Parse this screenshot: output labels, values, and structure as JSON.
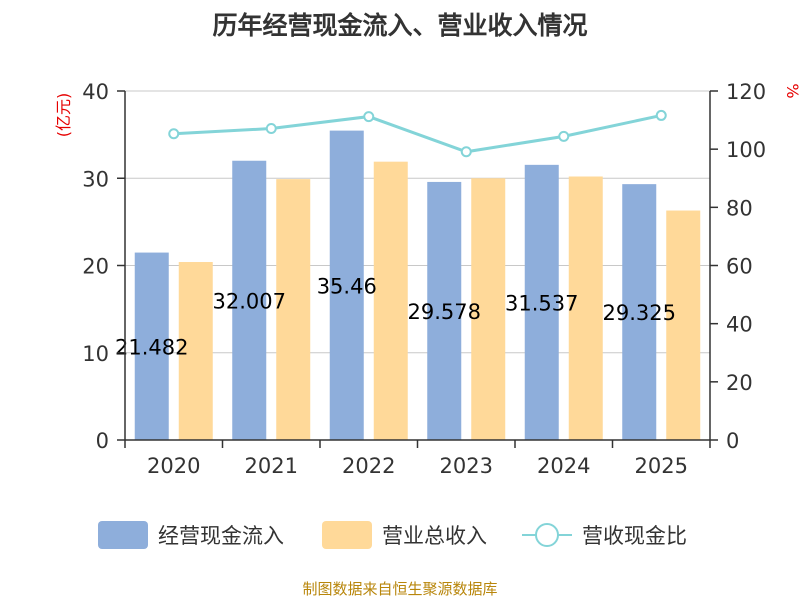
{
  "title": "历年经营现金流入、营业收入情况",
  "source": "制图数据来自恒生聚源数据库",
  "colors": {
    "cash_inflow": "#8eaedb",
    "revenue": "#ffd999",
    "ratio": "#83d4d8",
    "axis": "#333333",
    "grid": "#c8c8c8",
    "left_unit": "#e60000",
    "right_unit": "#e60000"
  },
  "chart_data": {
    "type": "bar",
    "categories": [
      "2020",
      "2021",
      "2022",
      "2023",
      "2024",
      "2025"
    ],
    "series": [
      {
        "name": "经营现金流入",
        "type": "bar",
        "axis": "left",
        "values": [
          21.482,
          32.007,
          35.46,
          29.578,
          31.537,
          29.325
        ],
        "labels": [
          "21.482",
          "32.007",
          "35.46",
          "29.578",
          "31.537",
          "29.325"
        ]
      },
      {
        "name": "营业总收入",
        "type": "bar",
        "axis": "left",
        "values": [
          20.4,
          29.9,
          31.9,
          30.0,
          30.2,
          26.3
        ]
      },
      {
        "name": "营收现金比",
        "type": "line",
        "axis": "right",
        "values": [
          105.3,
          107.1,
          111.2,
          99.1,
          104.4,
          111.6
        ]
      }
    ],
    "y_left": {
      "label": "(亿元)",
      "min": 0,
      "max": 40,
      "ticks": [
        0,
        10,
        20,
        30,
        40
      ]
    },
    "y_right": {
      "label": "%",
      "min": 0,
      "max": 120,
      "ticks": [
        0,
        20,
        40,
        60,
        80,
        100,
        120
      ]
    },
    "grid": true,
    "legend_position": "bottom"
  }
}
